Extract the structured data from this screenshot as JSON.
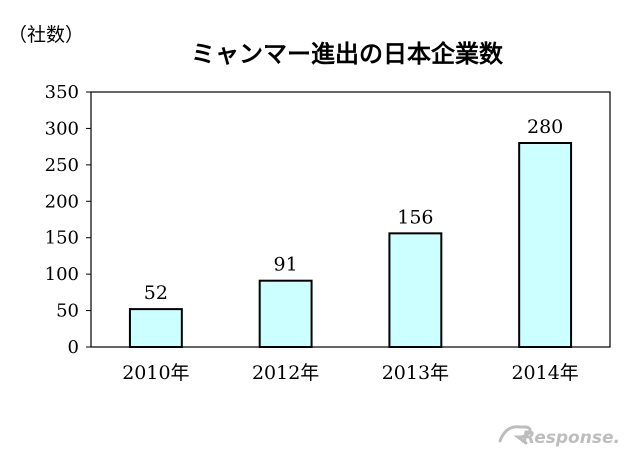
{
  "chart_data": {
    "type": "bar",
    "title": "ミャンマー進出の日本企業数",
    "unit_label": "（社数）",
    "categories": [
      "2010年",
      "2012年",
      "2013年",
      "2014年"
    ],
    "values": [
      52,
      91,
      156,
      280
    ],
    "data_labels": [
      "52",
      "91",
      "156",
      "280"
    ],
    "ylim": [
      0,
      350
    ],
    "yticks": [
      0,
      50,
      100,
      150,
      200,
      250,
      300,
      350
    ],
    "grid": false,
    "legend": "none",
    "bar_color": "#ccffff",
    "bar_stroke": "#000000"
  },
  "watermark": "Response."
}
